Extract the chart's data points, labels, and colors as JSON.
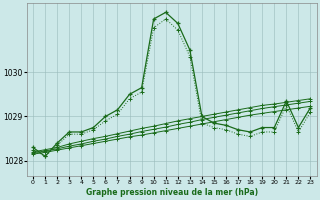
{
  "title": "Graphe pression niveau de la mer (hPa)",
  "background_color": "#cce8e8",
  "plot_bg_color": "#cce8e8",
  "line_color": "#1a6b1a",
  "grid_color": "#99bbbb",
  "xlim": [
    -0.5,
    23.5
  ],
  "ylim": [
    1027.65,
    1031.55
  ],
  "yticks": [
    1028,
    1029,
    1030
  ],
  "xticks": [
    0,
    1,
    2,
    3,
    4,
    5,
    6,
    7,
    8,
    9,
    10,
    11,
    12,
    13,
    14,
    15,
    16,
    17,
    18,
    19,
    20,
    21,
    22,
    23
  ],
  "series_main": [
    1028.3,
    1028.1,
    1028.4,
    1028.65,
    1028.65,
    1028.75,
    1029.0,
    1029.15,
    1029.5,
    1029.65,
    1031.2,
    1031.35,
    1031.1,
    1030.5,
    1029.0,
    1028.85,
    1028.8,
    1028.7,
    1028.65,
    1028.75,
    1028.75,
    1029.35,
    1028.75,
    1029.2
  ],
  "series_dot": [
    1028.25,
    1028.1,
    1028.35,
    1028.6,
    1028.6,
    1028.7,
    1028.9,
    1029.05,
    1029.4,
    1029.55,
    1031.0,
    1031.2,
    1030.95,
    1030.35,
    1028.85,
    1028.75,
    1028.7,
    1028.6,
    1028.55,
    1028.65,
    1028.65,
    1029.25,
    1028.65,
    1029.1
  ],
  "series_lin1": [
    1028.2,
    1028.25,
    1028.3,
    1028.38,
    1028.44,
    1028.5,
    1028.55,
    1028.61,
    1028.67,
    1028.73,
    1028.78,
    1028.84,
    1028.9,
    1028.95,
    1029.0,
    1029.05,
    1029.1,
    1029.15,
    1029.2,
    1029.25,
    1029.28,
    1029.32,
    1029.36,
    1029.4
  ],
  "series_lin2": [
    1028.18,
    1028.22,
    1028.27,
    1028.33,
    1028.38,
    1028.44,
    1028.49,
    1028.55,
    1028.6,
    1028.66,
    1028.71,
    1028.76,
    1028.82,
    1028.87,
    1028.93,
    1028.98,
    1029.03,
    1029.08,
    1029.13,
    1029.18,
    1029.22,
    1029.26,
    1029.3,
    1029.34
  ],
  "series_lin3": [
    1028.15,
    1028.19,
    1028.24,
    1028.29,
    1028.34,
    1028.39,
    1028.44,
    1028.49,
    1028.54,
    1028.58,
    1028.63,
    1028.68,
    1028.73,
    1028.78,
    1028.83,
    1028.88,
    1028.93,
    1028.98,
    1029.03,
    1029.07,
    1029.11,
    1029.15,
    1029.19,
    1029.23
  ]
}
